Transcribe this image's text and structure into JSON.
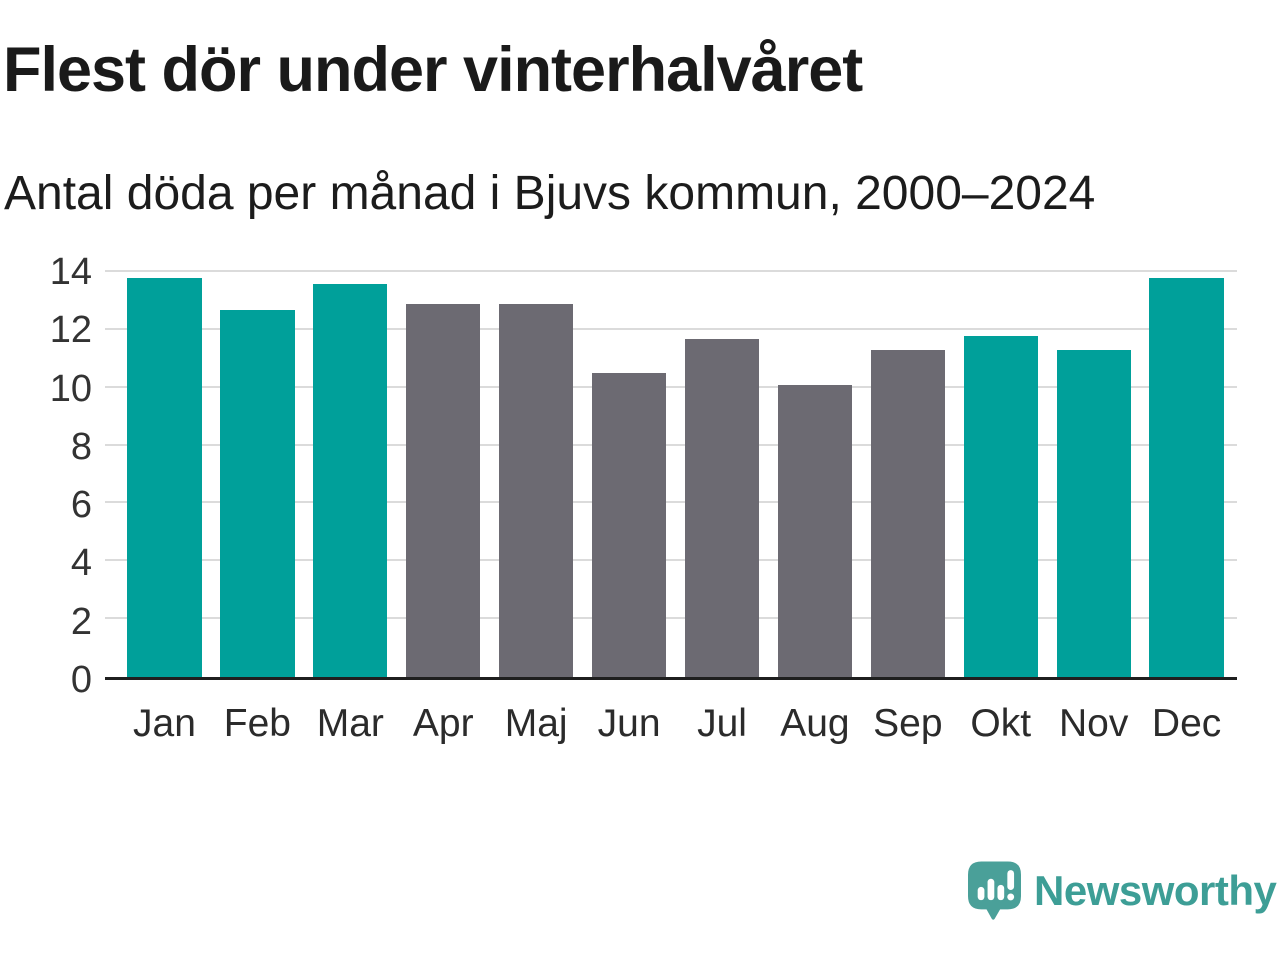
{
  "header": {
    "title": "Flest dör under vinterhalvåret",
    "subtitle": "Antal döda per månad i Bjuvs kommun, 2000–2024"
  },
  "chart_data": {
    "type": "bar",
    "title": "Flest dör under vinterhalvåret",
    "subtitle": "Antal döda per månad i Bjuvs kommun, 2000–2024",
    "categories": [
      "Jan",
      "Feb",
      "Mar",
      "Apr",
      "Maj",
      "Jun",
      "Jul",
      "Aug",
      "Sep",
      "Okt",
      "Nov",
      "Dec"
    ],
    "values": [
      13.8,
      12.7,
      13.6,
      12.9,
      12.9,
      10.5,
      11.7,
      10.1,
      11.3,
      11.8,
      11.3,
      13.8
    ],
    "bar_colors": [
      "teal",
      "teal",
      "teal",
      "gray",
      "gray",
      "gray",
      "gray",
      "gray",
      "gray",
      "teal",
      "teal",
      "teal"
    ],
    "colors": {
      "teal": "#00A09A",
      "gray": "#6C6A72"
    },
    "xlabel": "",
    "ylabel": "",
    "y_ticks": [
      0,
      2,
      4,
      6,
      8,
      10,
      12,
      14
    ],
    "ylim": [
      0,
      14
    ],
    "grid": true,
    "grid_color": "#DBDBDB",
    "axis_color": "#1F1F1F",
    "legend": false
  },
  "footer": {
    "brand": "Newsworthy",
    "brand_color": "#3D9E96",
    "logo_color": "#4AA099",
    "logo_icon": "bar-chart-speech-bubble-icon"
  }
}
